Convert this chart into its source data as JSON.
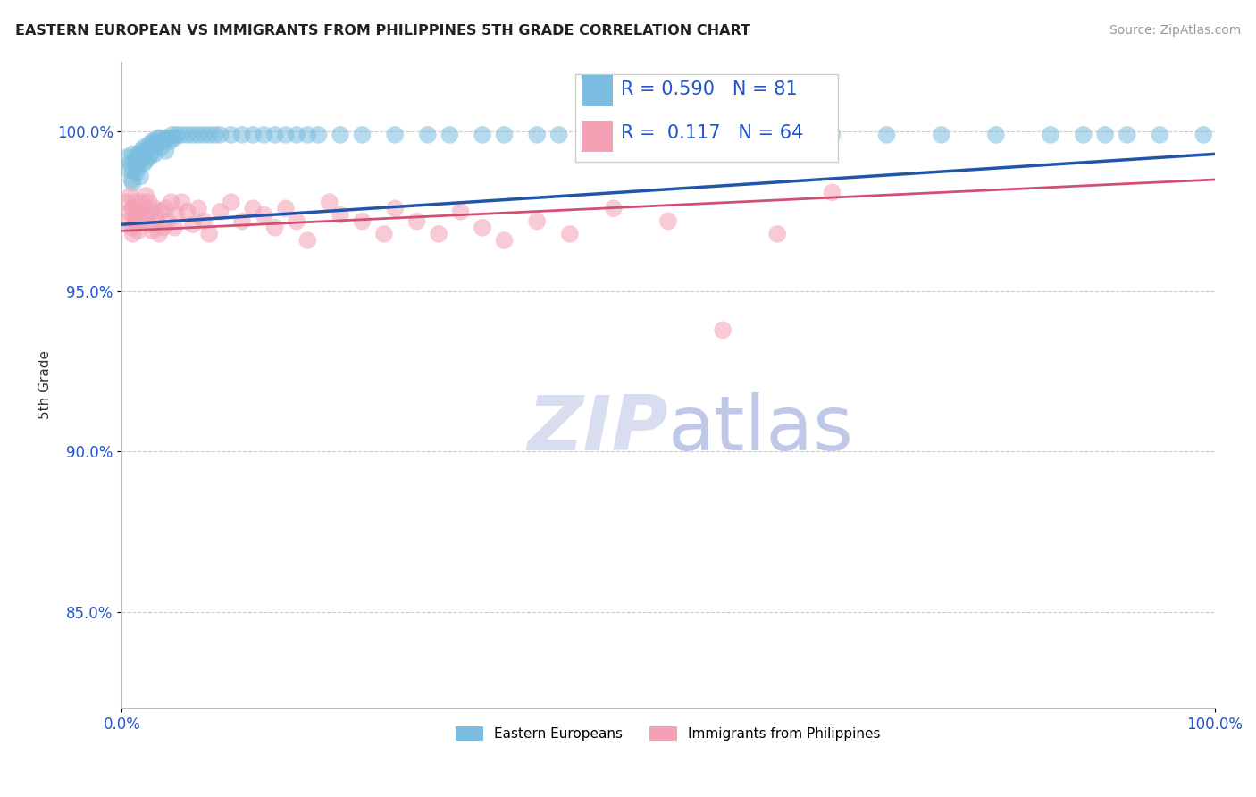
{
  "title": "EASTERN EUROPEAN VS IMMIGRANTS FROM PHILIPPINES 5TH GRADE CORRELATION CHART",
  "source": "Source: ZipAtlas.com",
  "ylabel": "5th Grade",
  "ytick_labels": [
    "85.0%",
    "90.0%",
    "95.0%",
    "100.0%"
  ],
  "ytick_values": [
    0.85,
    0.9,
    0.95,
    1.0
  ],
  "xlim": [
    0.0,
    1.0
  ],
  "ylim": [
    0.82,
    1.022
  ],
  "blue_R": "0.590",
  "blue_N": "81",
  "pink_R": "0.117",
  "pink_N": "64",
  "blue_color": "#7bbde0",
  "pink_color": "#f4a0b5",
  "blue_line_color": "#2255aa",
  "pink_line_color": "#d05070",
  "legend_text_color": "#2255cc",
  "blue_line_x0": 0.0,
  "blue_line_y0": 0.971,
  "blue_line_x1": 1.0,
  "blue_line_y1": 0.993,
  "pink_line_x0": 0.0,
  "pink_line_y0": 0.969,
  "pink_line_x1": 1.0,
  "pink_line_y1": 0.985,
  "blue_scatter_x": [
    0.005,
    0.007,
    0.008,
    0.009,
    0.01,
    0.01,
    0.01,
    0.012,
    0.013,
    0.014,
    0.015,
    0.015,
    0.016,
    0.017,
    0.018,
    0.019,
    0.02,
    0.02,
    0.021,
    0.022,
    0.023,
    0.025,
    0.025,
    0.026,
    0.027,
    0.028,
    0.03,
    0.03,
    0.032,
    0.033,
    0.035,
    0.036,
    0.038,
    0.04,
    0.04,
    0.042,
    0.044,
    0.046,
    0.048,
    0.05,
    0.055,
    0.06,
    0.065,
    0.07,
    0.075,
    0.08,
    0.085,
    0.09,
    0.1,
    0.11,
    0.12,
    0.13,
    0.14,
    0.15,
    0.16,
    0.17,
    0.18,
    0.2,
    0.22,
    0.25,
    0.28,
    0.3,
    0.33,
    0.35,
    0.38,
    0.4,
    0.43,
    0.46,
    0.5,
    0.55,
    0.6,
    0.65,
    0.7,
    0.75,
    0.8,
    0.85,
    0.88,
    0.9,
    0.92,
    0.95,
    0.99
  ],
  "blue_scatter_y": [
    0.992,
    0.988,
    0.99,
    0.985,
    0.993,
    0.988,
    0.984,
    0.991,
    0.987,
    0.992,
    0.993,
    0.989,
    0.991,
    0.986,
    0.994,
    0.992,
    0.995,
    0.99,
    0.993,
    0.991,
    0.994,
    0.996,
    0.992,
    0.995,
    0.993,
    0.997,
    0.997,
    0.993,
    0.996,
    0.998,
    0.998,
    0.995,
    0.997,
    0.998,
    0.994,
    0.998,
    0.997,
    0.999,
    0.998,
    0.999,
    0.999,
    0.999,
    0.999,
    0.999,
    0.999,
    0.999,
    0.999,
    0.999,
    0.999,
    0.999,
    0.999,
    0.999,
    0.999,
    0.999,
    0.999,
    0.999,
    0.999,
    0.999,
    0.999,
    0.999,
    0.999,
    0.999,
    0.999,
    0.999,
    0.999,
    0.999,
    0.999,
    0.999,
    0.999,
    0.999,
    0.999,
    0.999,
    0.999,
    0.999,
    0.999,
    0.999,
    0.999,
    0.999,
    0.999,
    0.999,
    0.999
  ],
  "pink_scatter_x": [
    0.005,
    0.006,
    0.007,
    0.008,
    0.009,
    0.01,
    0.01,
    0.011,
    0.012,
    0.013,
    0.015,
    0.015,
    0.016,
    0.018,
    0.019,
    0.02,
    0.022,
    0.023,
    0.025,
    0.025,
    0.027,
    0.028,
    0.03,
    0.032,
    0.034,
    0.036,
    0.038,
    0.04,
    0.042,
    0.045,
    0.048,
    0.05,
    0.055,
    0.06,
    0.065,
    0.07,
    0.075,
    0.08,
    0.09,
    0.1,
    0.11,
    0.12,
    0.13,
    0.14,
    0.15,
    0.16,
    0.17,
    0.19,
    0.2,
    0.22,
    0.24,
    0.25,
    0.27,
    0.29,
    0.31,
    0.33,
    0.35,
    0.38,
    0.41,
    0.45,
    0.5,
    0.55,
    0.6,
    0.65
  ],
  "pink_scatter_y": [
    0.978,
    0.972,
    0.975,
    0.98,
    0.97,
    0.976,
    0.968,
    0.974,
    0.978,
    0.972,
    0.975,
    0.969,
    0.973,
    0.978,
    0.972,
    0.976,
    0.98,
    0.974,
    0.978,
    0.971,
    0.975,
    0.969,
    0.976,
    0.972,
    0.968,
    0.975,
    0.97,
    0.976,
    0.972,
    0.978,
    0.97,
    0.974,
    0.978,
    0.975,
    0.971,
    0.976,
    0.972,
    0.968,
    0.975,
    0.978,
    0.972,
    0.976,
    0.974,
    0.97,
    0.976,
    0.972,
    0.966,
    0.978,
    0.974,
    0.972,
    0.968,
    0.976,
    0.972,
    0.968,
    0.975,
    0.97,
    0.966,
    0.972,
    0.968,
    0.976,
    0.972,
    0.938,
    0.968,
    0.981
  ]
}
